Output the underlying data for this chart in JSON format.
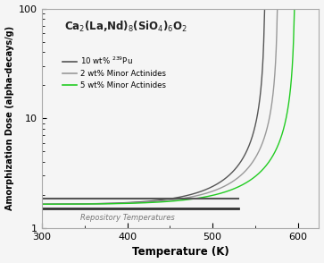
{
  "title": "Ca$_2$(La,Nd)$_8$(SiO$_4$)$_6$O$_2$",
  "xlabel": "Temperature (K)",
  "ylabel": "Amorphization Dose (alpha-decays/g)",
  "xlim": [
    300,
    625
  ],
  "ylim": [
    1,
    100
  ],
  "background_color": "#f5f5f5",
  "legend_labels": [
    "10 wt% $^{239}$Pu",
    "2 wt% Minor Actinides",
    "5 wt% Minor Actinides"
  ],
  "line_colors": [
    "#555555",
    "#999999",
    "#22cc22"
  ],
  "repo_temp_x_end": 530,
  "repo_temp_y_lower": 1.5,
  "repo_temp_y_upper": 1.85,
  "repo_label": "Repository Temperatures",
  "repo_color": "#777777",
  "T_c_values": [
    562,
    577,
    597
  ],
  "T_start": 300,
  "T_end": 625,
  "dose_low": 1.65,
  "n_points": 5000
}
